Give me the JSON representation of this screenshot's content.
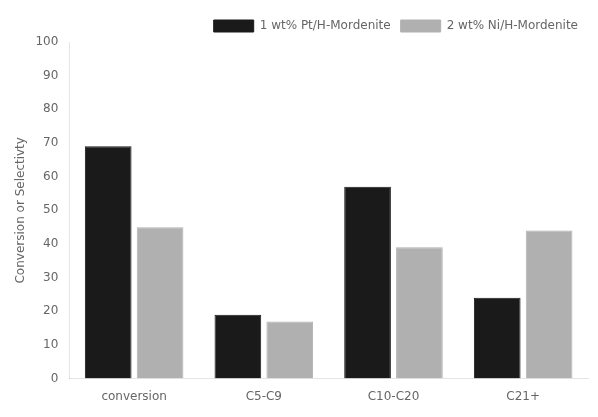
{
  "chart_data": {
    "type": "bar",
    "categories": [
      "conversion",
      "C5-C9",
      "C10-C20",
      "C21+"
    ],
    "series": [
      {
        "name": "1 wt% Pt/H-Mordenite",
        "color": "#1a1a1a",
        "values": [
          69,
          19,
          57,
          24
        ]
      },
      {
        "name": "2 wt% Ni/H-Mordenite",
        "color": "#b0b0b0",
        "values": [
          45,
          17,
          39,
          44
        ]
      }
    ],
    "ylabel": "Conversion or Selectivty",
    "ylim": [
      0,
      100
    ],
    "yticks": [
      0,
      10,
      20,
      30,
      40,
      50,
      60,
      70,
      80,
      90,
      100
    ],
    "grid": false,
    "legend": "upper right"
  }
}
